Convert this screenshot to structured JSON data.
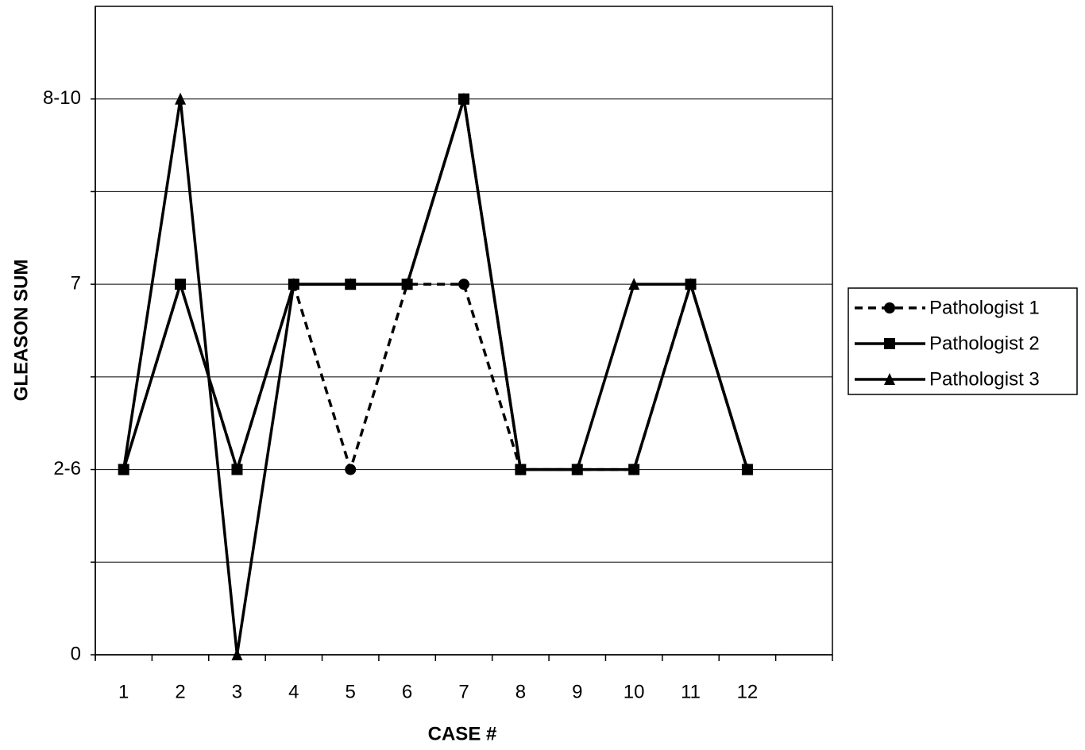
{
  "chart_data": {
    "type": "line",
    "xlabel": "CASE #",
    "ylabel": "GLEASON SUM",
    "categories": [
      "1",
      "2",
      "3",
      "4",
      "5",
      "6",
      "7",
      "8",
      "9",
      "10",
      "11",
      "12",
      null
    ],
    "series": [
      {
        "name": "Pathologist 1",
        "color": "#000000",
        "dash": true,
        "marker": "circle",
        "values": [
          1,
          2,
          1,
          2,
          1,
          2,
          2,
          1,
          1,
          1,
          2,
          1,
          null
        ]
      },
      {
        "name": "Pathologist 2",
        "color": "#000000",
        "dash": false,
        "marker": "square",
        "values": [
          1,
          2,
          1,
          2,
          2,
          2,
          3,
          1,
          1,
          1,
          2,
          1,
          null
        ]
      },
      {
        "name": "Pathologist 3",
        "color": "#000000",
        "dash": false,
        "marker": "triangle",
        "values": [
          1,
          3,
          0,
          2,
          2,
          2,
          3,
          1,
          1,
          2,
          2,
          1,
          null
        ]
      }
    ],
    "ylim": [
      0,
      3.5
    ],
    "yticks": [
      0,
      {
        "value": 1,
        "label": "2-6"
      },
      {
        "value": 2,
        "label": "7"
      },
      {
        "value": 3,
        "label": "8-10"
      }
    ],
    "minor_yticks": [
      0.5,
      1.5,
      2.5
    ],
    "grid": true,
    "legend": "right"
  }
}
